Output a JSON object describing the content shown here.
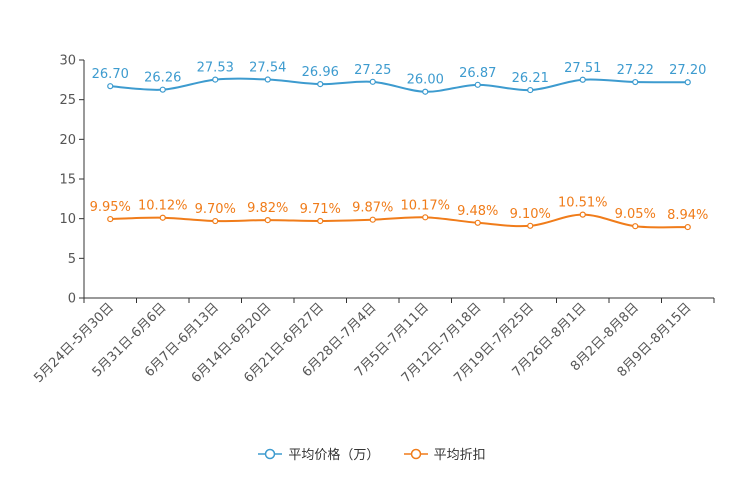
{
  "chart_data": {
    "type": "line",
    "categories": [
      "5月24日-5月30日",
      "5月31日-6月6日",
      "6月7日-6月13日",
      "6月14日-6月20日",
      "6月21日-6月27日",
      "6月28日-7月4日",
      "7月5日-7月11日",
      "7月12日-7月18日",
      "7月19日-7月25日",
      "7月26日-8月1日",
      "8月2日-8月8日",
      "8月9日-8月15日"
    ],
    "ylim": [
      0,
      30
    ],
    "yticks": [
      0,
      5,
      10,
      15,
      20,
      25,
      30
    ],
    "grid": false,
    "legend_position": "bottom",
    "series": [
      {
        "name": "平均价格（万）",
        "color": "#3d9bcf",
        "values": [
          26.7,
          26.26,
          27.53,
          27.54,
          26.96,
          27.25,
          26.0,
          26.87,
          26.21,
          27.51,
          27.22,
          27.2
        ],
        "labels": [
          "26.70",
          "26.26",
          "27.53",
          "27.54",
          "26.96",
          "27.25",
          "26.00",
          "26.87",
          "26.21",
          "27.51",
          "27.22",
          "27.20"
        ]
      },
      {
        "name": "平均折扣",
        "color": "#f07c1a",
        "values": [
          9.95,
          10.12,
          9.7,
          9.82,
          9.71,
          9.87,
          10.17,
          9.48,
          9.1,
          10.51,
          9.05,
          8.94
        ],
        "labels": [
          "9.95%",
          "10.12%",
          "9.70%",
          "9.82%",
          "9.71%",
          "9.87%",
          "10.17%",
          "9.48%",
          "9.10%",
          "10.51%",
          "9.05%",
          "8.94%"
        ]
      }
    ]
  }
}
